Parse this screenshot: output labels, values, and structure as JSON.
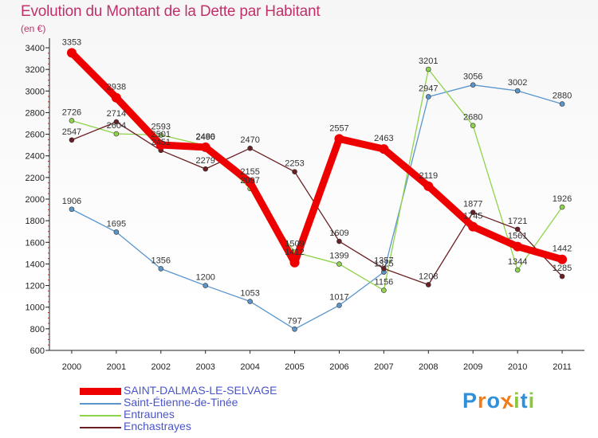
{
  "chart_data": {
    "type": "line",
    "title": "Evolution du Montant de la Dette par Habitant",
    "subtitle": "(en €)",
    "x": [
      "2000",
      "2001",
      "2002",
      "2003",
      "2004",
      "2005",
      "2006",
      "2007",
      "2008",
      "2009",
      "2010",
      "2011"
    ],
    "ylim": [
      600,
      3400
    ],
    "yticks": [
      600,
      800,
      1000,
      1200,
      1400,
      1600,
      1800,
      2000,
      2200,
      2400,
      2600,
      2800,
      3000,
      3200,
      3400
    ],
    "grid": false,
    "legend_position": "bottom-left",
    "series": [
      {
        "name": "SAINT-DALMAS-LE-SELVAGE",
        "color": "#ee0000",
        "emphasis": true,
        "values": [
          3353,
          2938,
          2501,
          2480,
          2155,
          1412,
          2557,
          2463,
          2119,
          1745,
          1561,
          1442
        ]
      },
      {
        "name": "Saint-Étienne-de-Tinée",
        "color": "#5a96cc",
        "values": [
          1906,
          1695,
          1356,
          1200,
          1053,
          797,
          1017,
          1325,
          2947,
          3056,
          3002,
          2880
        ]
      },
      {
        "name": "Entraunes",
        "color": "#8fd34a",
        "values": [
          2726,
          2604,
          2593,
          2496,
          2097,
          1509,
          1399,
          1156,
          3201,
          2680,
          1344,
          1926
        ]
      },
      {
        "name": "Enchastrayes",
        "color": "#6b1f24",
        "values": [
          2547,
          2714,
          2451,
          2279,
          2470,
          2253,
          1609,
          1357,
          1208,
          1877,
          1721,
          1285
        ]
      }
    ]
  },
  "brand": {
    "letters": [
      "P",
      "r",
      "o",
      "x",
      "i",
      "t",
      "i"
    ],
    "colors": [
      "#2f8fd8",
      "#f07d1a",
      "#2f8fd8",
      "#f07d1a",
      "#8dc63f",
      "#2f8fd8",
      "#8dc63f"
    ]
  }
}
